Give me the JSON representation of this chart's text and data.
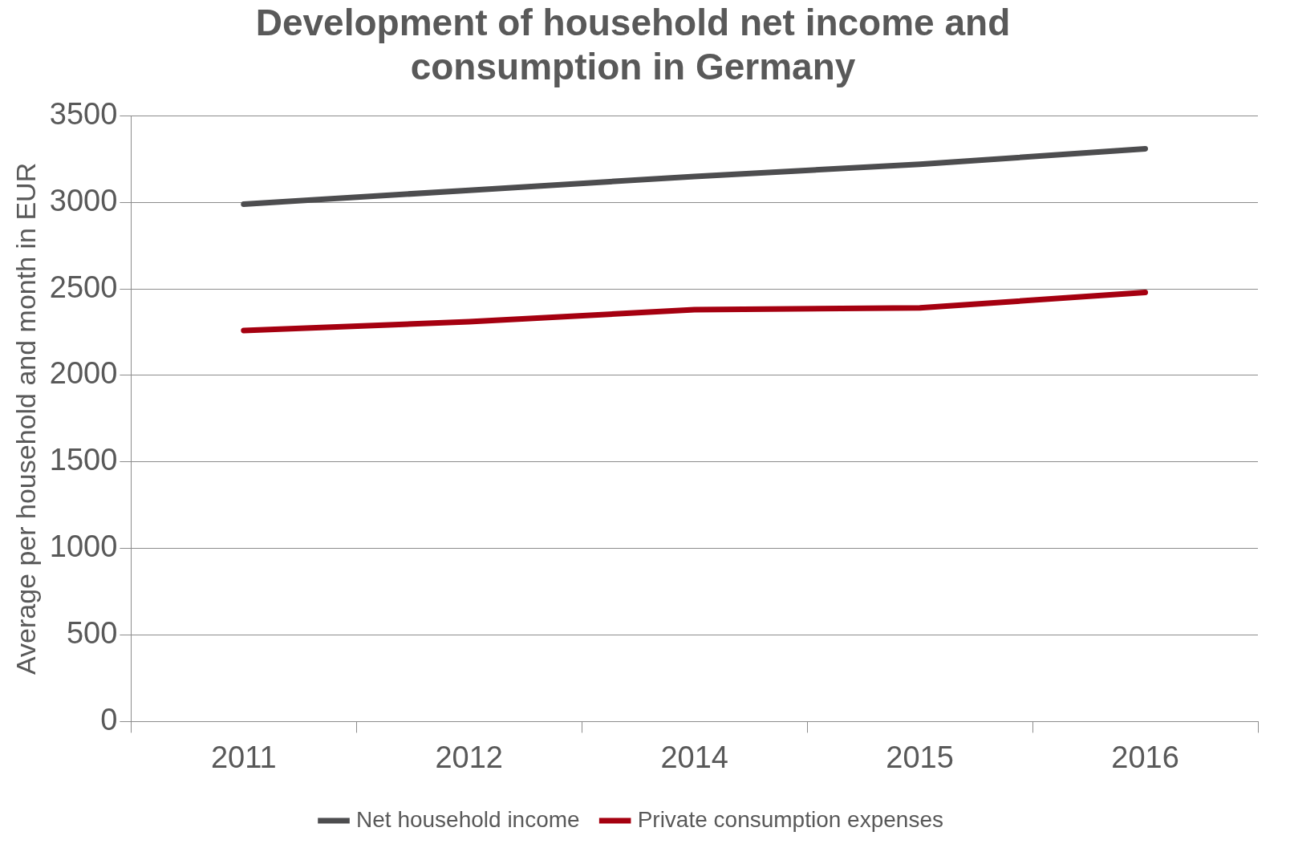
{
  "chart_data": {
    "type": "line",
    "title": [
      "Development of household net income and",
      "consumption in Germany"
    ],
    "ylabel": "Average per household and month in EUR",
    "categories": [
      "2011",
      "2012",
      "2014",
      "2015",
      "2016"
    ],
    "series": [
      {
        "name": "Net household income",
        "color": "#4d4d4f",
        "values": [
          2990,
          3070,
          3150,
          3220,
          3310
        ]
      },
      {
        "name": "Private consumption expenses",
        "color": "#a50010",
        "values": [
          2260,
          2310,
          2380,
          2390,
          2480
        ]
      }
    ],
    "ylim": [
      0,
      3500
    ],
    "yticks": [
      0,
      500,
      1000,
      1500,
      2000,
      2500,
      3000,
      3500
    ],
    "grid": "y",
    "legend": "bottom",
    "marker": "none",
    "line_style": "solid"
  }
}
